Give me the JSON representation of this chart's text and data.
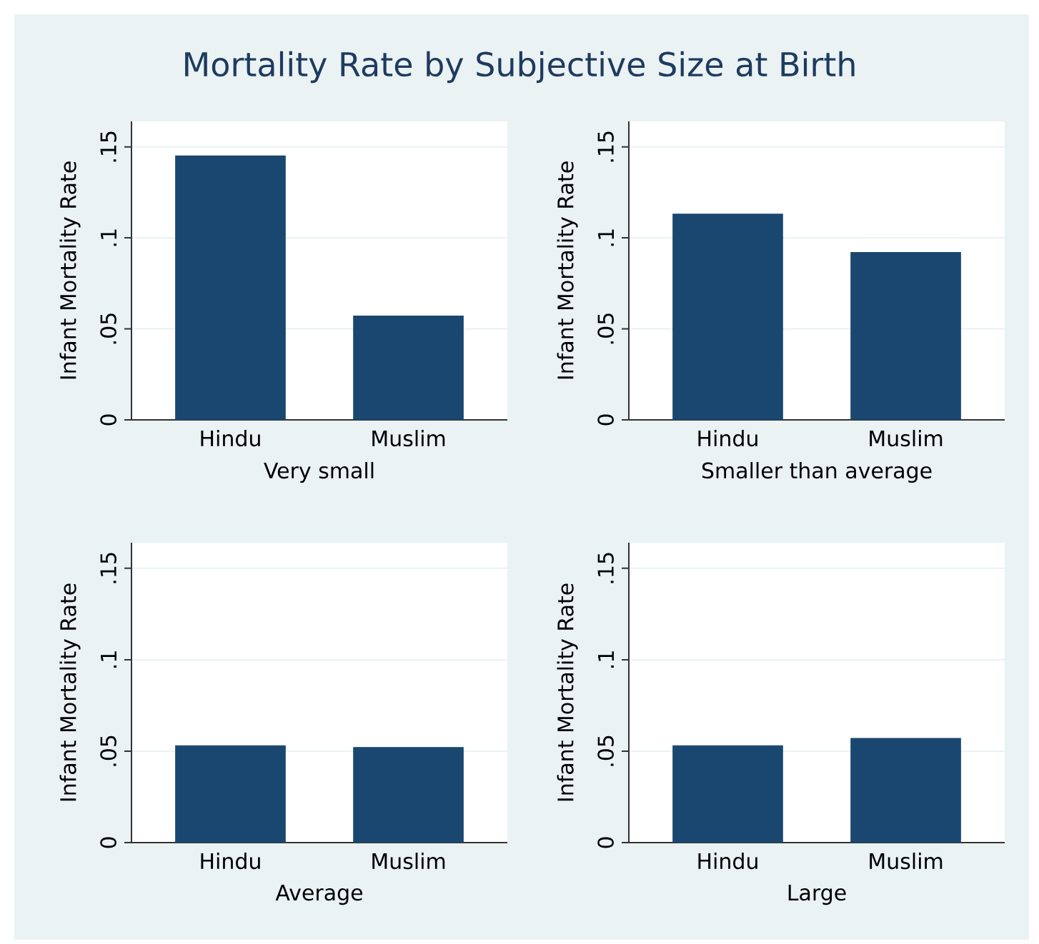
{
  "chart_data": [
    {
      "type": "bar",
      "title": "Mortality Rate by Subjective Size at Birth",
      "xlabel": "Very small",
      "ylabel": "Infant Mortality Rate",
      "categories": [
        "Hindu",
        "Muslim"
      ],
      "values": [
        0.145,
        0.057
      ],
      "color": "#1a476f",
      "ylim": [
        0,
        0.164
      ],
      "yticks": [
        0,
        {
          "value": 0.05,
          "label": ".05"
        },
        {
          "value": 0.1,
          "label": ".1"
        },
        {
          "value": 0.15,
          "label": ".15"
        }
      ],
      "grid": "y"
    },
    {
      "type": "bar",
      "xlabel": "Smaller than average",
      "ylabel": "Infant Mortality Rate",
      "categories": [
        "Hindu",
        "Muslim"
      ],
      "values": [
        0.113,
        0.092
      ],
      "color": "#1a476f",
      "ylim": [
        0,
        0.164
      ],
      "yticks": [
        0,
        {
          "value": 0.05,
          "label": ".05"
        },
        {
          "value": 0.1,
          "label": ".1"
        },
        {
          "value": 0.15,
          "label": ".15"
        }
      ],
      "grid": "y"
    },
    {
      "type": "bar",
      "xlabel": "Average",
      "ylabel": "Infant Mortality Rate",
      "categories": [
        "Hindu",
        "Muslim"
      ],
      "values": [
        0.053,
        0.052
      ],
      "color": "#1a476f",
      "ylim": [
        0,
        0.164
      ],
      "yticks": [
        0,
        {
          "value": 0.05,
          "label": ".05"
        },
        {
          "value": 0.1,
          "label": ".1"
        },
        {
          "value": 0.15,
          "label": ".15"
        }
      ],
      "grid": "y"
    },
    {
      "type": "bar",
      "xlabel": "Large",
      "ylabel": "Infant Mortality Rate",
      "categories": [
        "Hindu",
        "Muslim"
      ],
      "values": [
        0.053,
        0.057
      ],
      "color": "#1a476f",
      "ylim": [
        0,
        0.164
      ],
      "yticks": [
        0,
        {
          "value": 0.05,
          "label": ".05"
        },
        {
          "value": 0.1,
          "label": ".1"
        },
        {
          "value": 0.15,
          "label": ".15"
        }
      ],
      "grid": "y"
    }
  ]
}
